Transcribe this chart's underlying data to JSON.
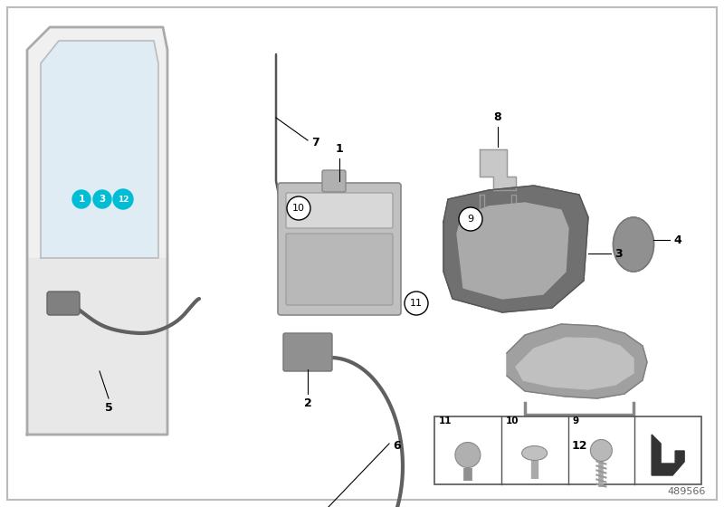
{
  "bg_color": "#ffffff",
  "border_color": "#bbbbbb",
  "part_number": "489566",
  "bubble_color": "#00bcd4",
  "bubble_text_color": "#ffffff",
  "fig_width": 8.0,
  "fig_height": 5.6,
  "dpi": 100
}
